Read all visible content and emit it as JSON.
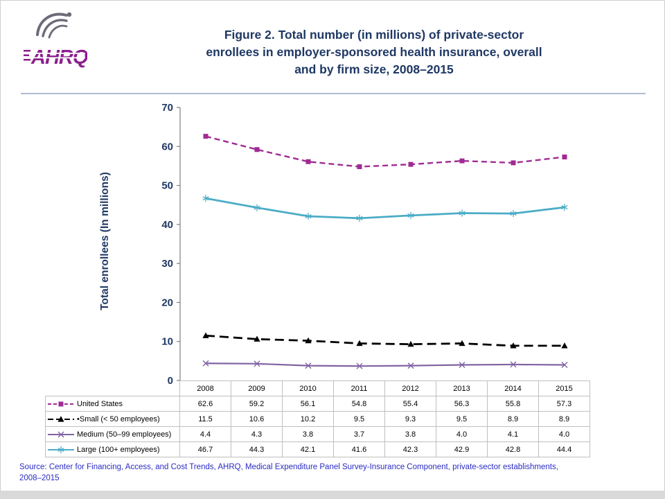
{
  "page": {
    "logo_text": "AHRQ",
    "title_lines": [
      "Figure 2. Total number (in millions) of private-sector",
      "enrollees in employer-sponsored health insurance, overall",
      "and by firm size, 2008–2015"
    ],
    "source_lines": [
      "Source: Center for Financing, Access, and Cost Trends, AHRQ, Medical Expenditure Panel Survey-Insurance Component, private-sector establishments,",
      "2008–2015"
    ]
  },
  "theme": {
    "title_color": "#1F3864",
    "axis_color": "#1F3864",
    "source_color": "#2B2BC4",
    "logo_purple": "#8A1F8C",
    "eagle_gray": "#6B6B7A",
    "axis_line_color": "#7F7F7F",
    "table_border_color": "#BFBFBF"
  },
  "chart_data": {
    "type": "line",
    "title": "Figure 2. Total number (in millions) of private-sector enrollees in employer-sponsored health insurance, overall and by firm size, 2008–2015",
    "xlabel": "",
    "ylabel": "Total enrollees (In millions)",
    "ylim": [
      0,
      70
    ],
    "yticks": [
      0,
      10,
      20,
      30,
      40,
      50,
      60,
      70
    ],
    "grid": false,
    "legend_position": "table-left",
    "categories": [
      "2008",
      "2009",
      "2010",
      "2011",
      "2012",
      "2013",
      "2014",
      "2015"
    ],
    "series": [
      {
        "name": "United States",
        "legend_label": "United States",
        "values": [
          62.6,
          59.2,
          56.1,
          54.8,
          55.4,
          56.3,
          55.8,
          57.3
        ],
        "color": "#A02B93",
        "marker": "square",
        "dash": "8 5",
        "legend_dash": "5 3",
        "line_width": 2.4
      },
      {
        "name": "Small (< 50 employees)",
        "legend_label": "•Small (< 50 employees)",
        "values": [
          11.5,
          10.6,
          10.2,
          9.5,
          9.3,
          9.5,
          8.9,
          8.9
        ],
        "color": "#000000",
        "marker": "triangle",
        "dash": "13 7",
        "legend_dash": "8 4",
        "line_width": 2.8
      },
      {
        "name": "Medium (50–99 employees)",
        "legend_label": "Medium (50–99 employees)",
        "values": [
          4.4,
          4.3,
          3.8,
          3.7,
          3.8,
          4.0,
          4.1,
          4.0
        ],
        "color": "#8064A2",
        "marker": "x",
        "dash": null,
        "legend_dash": null,
        "line_width": 2.2
      },
      {
        "name": "Large (100+ employees)",
        "legend_label": "Large (100+ employees)",
        "values": [
          46.7,
          44.3,
          42.1,
          41.6,
          42.3,
          42.9,
          42.8,
          44.4
        ],
        "color": "#4BACC6",
        "marker": "asterisk",
        "dash": null,
        "legend_dash": null,
        "line_width": 2.8
      }
    ]
  }
}
